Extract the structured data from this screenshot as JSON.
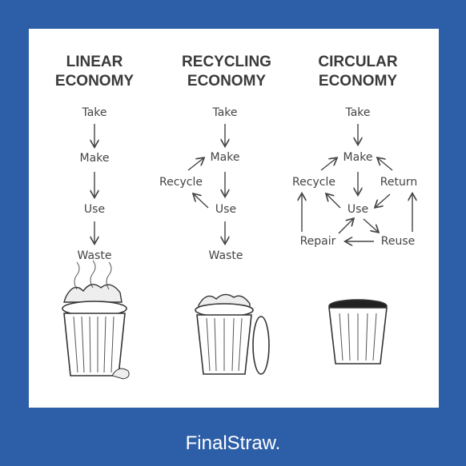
{
  "columns": [
    {
      "title": [
        "LINEAR",
        "ECONOMY"
      ],
      "nodes": [
        "Take",
        "Make",
        "Use",
        "Waste"
      ]
    },
    {
      "title": [
        "RECYCLING",
        "ECONOMY"
      ],
      "nodes": [
        "Take",
        "Make",
        "Recycle",
        "Use",
        "Waste"
      ]
    },
    {
      "title": [
        "CIRCULAR",
        "ECONOMY"
      ],
      "nodes": [
        "Take",
        "Make",
        "Recycle",
        "Return",
        "Use",
        "Repair",
        "Reuse"
      ]
    }
  ],
  "brand": "FinalStraw."
}
